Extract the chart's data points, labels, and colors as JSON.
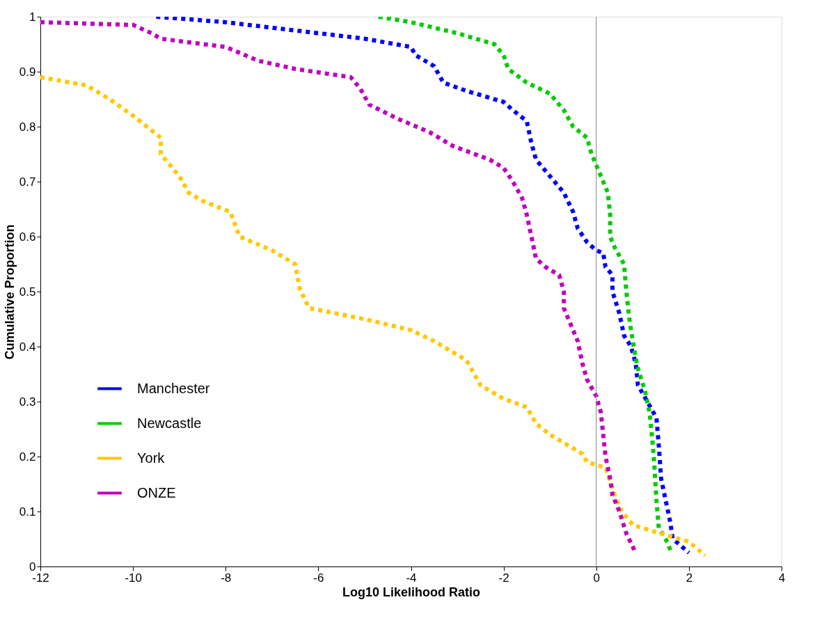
{
  "chart_data": {
    "type": "line",
    "xlabel": "Log10 Likelihood Ratio",
    "ylabel": "Cumulative Proportion",
    "xlim": [
      -12,
      4
    ],
    "xticks": [
      -12,
      -10,
      -8,
      -6,
      -4,
      -2,
      0,
      2,
      4
    ],
    "ylim": [
      0,
      1
    ],
    "yticks": [
      0,
      0.1,
      0.2,
      0.3,
      0.4,
      0.5,
      0.6,
      0.7,
      0.8,
      0.9,
      1
    ],
    "grid": false,
    "legend": "bottom left",
    "line_style": "dotted",
    "marker": "none",
    "ref_lines": [
      {
        "axis": "x",
        "value": 0,
        "color": "#808080"
      }
    ],
    "series": [
      {
        "name": "Manchester",
        "color": "#0000ff",
        "x": [
          -9.5,
          -8,
          -6,
          -5,
          -4,
          -3.9,
          -3.5,
          -3.3,
          -2.8,
          -2,
          -1.8,
          -1.5,
          -1.4,
          -1.3,
          -1,
          -0.7,
          -0.5,
          -0.4,
          -0.2,
          0,
          0.15,
          0.2,
          0.35,
          0.35,
          0.5,
          0.6,
          0.75,
          0.85,
          0.9,
          1.1,
          1.3,
          1.35,
          1.4,
          1.5,
          1.6,
          1.65,
          1.8,
          2.0
        ],
        "values": [
          1.0,
          0.99,
          0.97,
          0.96,
          0.945,
          0.93,
          0.91,
          0.88,
          0.865,
          0.845,
          0.83,
          0.81,
          0.77,
          0.74,
          0.71,
          0.68,
          0.645,
          0.615,
          0.59,
          0.575,
          0.57,
          0.545,
          0.53,
          0.5,
          0.46,
          0.42,
          0.4,
          0.37,
          0.33,
          0.3,
          0.27,
          0.22,
          0.16,
          0.12,
          0.08,
          0.05,
          0.04,
          0.025
        ]
      },
      {
        "name": "Newcastle",
        "color": "#00cc00",
        "x": [
          -4.7,
          -4,
          -3,
          -2.2,
          -2,
          -1.9,
          -1.5,
          -1,
          -0.7,
          -0.5,
          -0.2,
          -0.1,
          0.05,
          0.25,
          0.3,
          0.3,
          0.4,
          0.6,
          0.65,
          0.7,
          0.75,
          0.85,
          0.9,
          1.05,
          1.15,
          1.2,
          1.25,
          1.3,
          1.35,
          1.5,
          1.6
        ],
        "values": [
          1.0,
          0.99,
          0.97,
          0.95,
          0.93,
          0.905,
          0.88,
          0.86,
          0.83,
          0.8,
          0.78,
          0.75,
          0.72,
          0.68,
          0.64,
          0.6,
          0.58,
          0.55,
          0.5,
          0.46,
          0.43,
          0.38,
          0.36,
          0.32,
          0.28,
          0.24,
          0.19,
          0.12,
          0.07,
          0.05,
          0.03
        ]
      },
      {
        "name": "York",
        "color": "#ffc800",
        "x": [
          -12,
          -11,
          -10.5,
          -10,
          -9.4,
          -9.4,
          -9,
          -8.8,
          -8.5,
          -7.9,
          -7.7,
          -7,
          -6.5,
          -6.4,
          -6.2,
          -5,
          -4,
          -3.5,
          -2.8,
          -2.5,
          -2,
          -1.5,
          -1.3,
          -1,
          -0.5,
          -0.3,
          -0.2,
          0,
          0.2,
          0.4,
          0.55,
          0.8,
          1.2,
          1.6,
          2.0,
          2.35
        ],
        "values": [
          0.89,
          0.875,
          0.85,
          0.82,
          0.78,
          0.75,
          0.71,
          0.68,
          0.665,
          0.645,
          0.6,
          0.575,
          0.55,
          0.505,
          0.47,
          0.45,
          0.43,
          0.41,
          0.375,
          0.33,
          0.305,
          0.29,
          0.26,
          0.24,
          0.215,
          0.205,
          0.19,
          0.185,
          0.18,
          0.13,
          0.1,
          0.075,
          0.065,
          0.055,
          0.045,
          0.02
        ]
      },
      {
        "name": "ONZE",
        "color": "#c000c0",
        "x": [
          -12,
          -10,
          -9.6,
          -9.4,
          -8,
          -7.3,
          -6.5,
          -5.3,
          -5.1,
          -4.9,
          -4.3,
          -3.6,
          -3.1,
          -2.3,
          -2.0,
          -1.8,
          -1.6,
          -1.5,
          -1.4,
          -1.3,
          -1.1,
          -0.8,
          -0.7,
          -0.7,
          -0.55,
          -0.4,
          -0.3,
          -0.2,
          0,
          0.1,
          0.15,
          0.2,
          0.3,
          0.35,
          0.5,
          0.65,
          0.85
        ],
        "values": [
          0.99,
          0.985,
          0.97,
          0.96,
          0.945,
          0.92,
          0.905,
          0.89,
          0.87,
          0.84,
          0.815,
          0.79,
          0.765,
          0.74,
          0.725,
          0.7,
          0.67,
          0.64,
          0.6,
          0.56,
          0.545,
          0.53,
          0.5,
          0.47,
          0.44,
          0.41,
          0.37,
          0.34,
          0.31,
          0.28,
          0.24,
          0.2,
          0.16,
          0.13,
          0.1,
          0.06,
          0.025
        ]
      }
    ]
  }
}
